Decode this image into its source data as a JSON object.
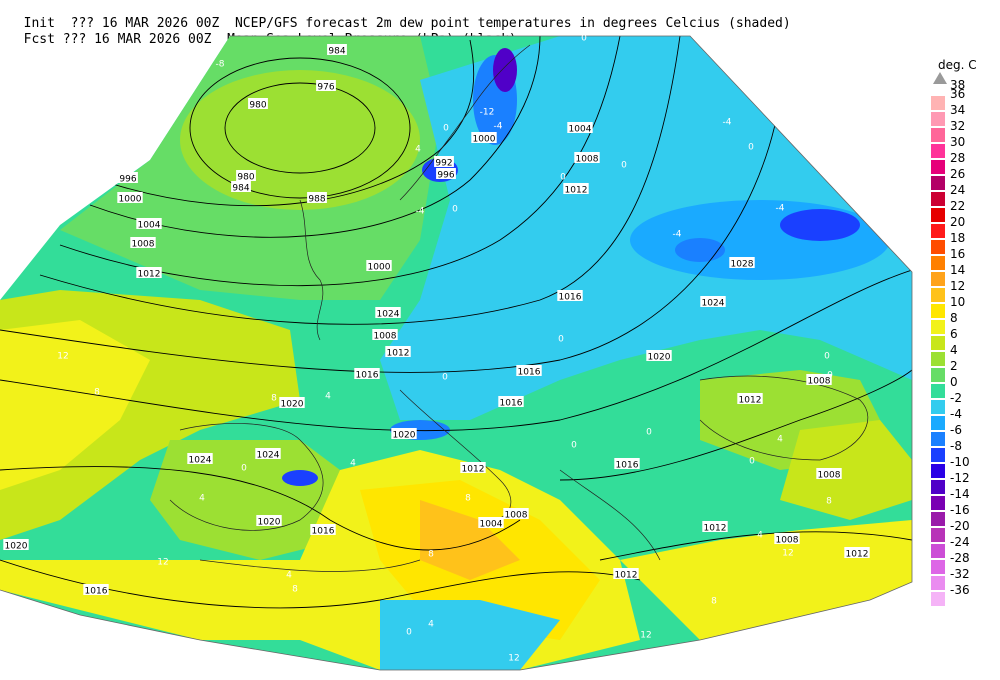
{
  "header": {
    "line1_left": "Init  ??? 16 MAR 2026 00Z",
    "line1_right": "NCEP/GFS forecast 2m dew point temperatures in degrees Celcius (shaded)",
    "line2_left": "Fcst ??? 16 MAR 2026 00Z",
    "line2_right": "Mean Sea-Level Pressure (hPa) (black)."
  },
  "legend": {
    "title": "deg. C",
    "top_value": "38",
    "entries": [
      {
        "label": "36",
        "color": "#ffb3b3"
      },
      {
        "label": "34",
        "color": "#ff99b3"
      },
      {
        "label": "32",
        "color": "#ff6699"
      },
      {
        "label": "30",
        "color": "#ff3399"
      },
      {
        "label": "28",
        "color": "#e6007a"
      },
      {
        "label": "26",
        "color": "#b30066"
      },
      {
        "label": "24",
        "color": "#cc0033"
      },
      {
        "label": "22",
        "color": "#e60000"
      },
      {
        "label": "20",
        "color": "#ff1a1a"
      },
      {
        "label": "18",
        "color": "#ff4d00"
      },
      {
        "label": "16",
        "color": "#ff8000"
      },
      {
        "label": "14",
        "color": "#ffa31a"
      },
      {
        "label": "12",
        "color": "#ffc21a"
      },
      {
        "label": "10",
        "color": "#ffe600"
      },
      {
        "label": "8",
        "color": "#f2f21a"
      },
      {
        "label": "6",
        "color": "#c8e61a"
      },
      {
        "label": "4",
        "color": "#9ce033"
      },
      {
        "label": "2",
        "color": "#66dd66"
      },
      {
        "label": "0",
        "color": "#33dd99"
      },
      {
        "label": "-2",
        "color": "#33ccee"
      },
      {
        "label": "-4",
        "color": "#1aaaff"
      },
      {
        "label": "-6",
        "color": "#1a80ff"
      },
      {
        "label": "-8",
        "color": "#1a40ff"
      },
      {
        "label": "-10",
        "color": "#2a00e6"
      },
      {
        "label": "-12",
        "color": "#5000c8"
      },
      {
        "label": "-14",
        "color": "#7a00b3"
      },
      {
        "label": "-16",
        "color": "#9a1aaa"
      },
      {
        "label": "-20",
        "color": "#b833b8"
      },
      {
        "label": "-24",
        "color": "#cc4dd6"
      },
      {
        "label": "-28",
        "color": "#dd66e6"
      },
      {
        "label": "-32",
        "color": "#ea8cf0"
      },
      {
        "label": "-36",
        "color": "#f5b3f7"
      }
    ]
  },
  "map": {
    "isobars": [
      {
        "label": "984",
        "pos": [
          337,
          50
        ]
      },
      {
        "label": "976",
        "pos": [
          326,
          86
        ]
      },
      {
        "label": "980",
        "pos": [
          258,
          104
        ]
      },
      {
        "label": "980",
        "pos": [
          246,
          176
        ]
      },
      {
        "label": "984",
        "pos": [
          241,
          187
        ]
      },
      {
        "label": "996",
        "pos": [
          128,
          178
        ]
      },
      {
        "label": "1000",
        "pos": [
          130,
          198
        ]
      },
      {
        "label": "1004",
        "pos": [
          149,
          224
        ]
      },
      {
        "label": "1008",
        "pos": [
          143,
          243
        ]
      },
      {
        "label": "1012",
        "pos": [
          149,
          273
        ]
      },
      {
        "label": "988",
        "pos": [
          317,
          198
        ]
      },
      {
        "label": "1000",
        "pos": [
          484,
          138
        ]
      },
      {
        "label": "992",
        "pos": [
          444,
          162
        ]
      },
      {
        "label": "996",
        "pos": [
          446,
          174
        ]
      },
      {
        "label": "1004",
        "pos": [
          580,
          128
        ]
      },
      {
        "label": "1008",
        "pos": [
          587,
          158
        ]
      },
      {
        "label": "1012",
        "pos": [
          576,
          189
        ]
      },
      {
        "label": "1000",
        "pos": [
          379,
          266
        ]
      },
      {
        "label": "1024",
        "pos": [
          388,
          313
        ]
      },
      {
        "label": "1008",
        "pos": [
          385,
          335
        ]
      },
      {
        "label": "1012",
        "pos": [
          398,
          352
        ]
      },
      {
        "label": "1016",
        "pos": [
          367,
          374
        ]
      },
      {
        "label": "1016",
        "pos": [
          570,
          296
        ]
      },
      {
        "label": "1028",
        "pos": [
          742,
          263
        ]
      },
      {
        "label": "1024",
        "pos": [
          713,
          302
        ]
      },
      {
        "label": "1020",
        "pos": [
          659,
          356
        ]
      },
      {
        "label": "1016",
        "pos": [
          529,
          371
        ]
      },
      {
        "label": "1016",
        "pos": [
          511,
          402
        ]
      },
      {
        "label": "1020",
        "pos": [
          292,
          403
        ]
      },
      {
        "label": "1020",
        "pos": [
          404,
          434
        ]
      },
      {
        "label": "1024",
        "pos": [
          200,
          459
        ]
      },
      {
        "label": "1024",
        "pos": [
          268,
          454
        ]
      },
      {
        "label": "1012",
        "pos": [
          473,
          468
        ]
      },
      {
        "label": "1016",
        "pos": [
          627,
          464
        ]
      },
      {
        "label": "1008",
        "pos": [
          819,
          380
        ]
      },
      {
        "label": "1012",
        "pos": [
          750,
          399
        ]
      },
      {
        "label": "1008",
        "pos": [
          829,
          474
        ]
      },
      {
        "label": "1020",
        "pos": [
          269,
          521
        ]
      },
      {
        "label": "1016",
        "pos": [
          323,
          530
        ]
      },
      {
        "label": "1008",
        "pos": [
          516,
          514
        ]
      },
      {
        "label": "1004",
        "pos": [
          491,
          523
        ]
      },
      {
        "label": "1012",
        "pos": [
          715,
          527
        ]
      },
      {
        "label": "1008",
        "pos": [
          787,
          539
        ]
      },
      {
        "label": "1012",
        "pos": [
          857,
          553
        ]
      },
      {
        "label": "1012",
        "pos": [
          626,
          574
        ]
      },
      {
        "label": "1020",
        "pos": [
          16,
          545
        ]
      },
      {
        "label": "1016",
        "pos": [
          96,
          590
        ]
      }
    ],
    "temp_labels": [
      {
        "label": "-8",
        "pos": [
          220,
          63
        ]
      },
      {
        "label": "0",
        "pos": [
          584,
          37
        ]
      },
      {
        "label": "-4",
        "pos": [
          498,
          125
        ]
      },
      {
        "label": "-12",
        "pos": [
          487,
          111
        ]
      },
      {
        "label": "-4",
        "pos": [
          727,
          121
        ]
      },
      {
        "label": "0",
        "pos": [
          751,
          146
        ]
      },
      {
        "label": "-4",
        "pos": [
          780,
          207
        ]
      },
      {
        "label": "-4",
        "pos": [
          677,
          233
        ]
      },
      {
        "label": "0",
        "pos": [
          624,
          164
        ]
      },
      {
        "label": "0",
        "pos": [
          563,
          176
        ]
      },
      {
        "label": "0",
        "pos": [
          446,
          127
        ]
      },
      {
        "label": "4",
        "pos": [
          418,
          148
        ]
      },
      {
        "label": "-4",
        "pos": [
          420,
          210
        ]
      },
      {
        "label": "0",
        "pos": [
          455,
          208
        ]
      },
      {
        "label": "0",
        "pos": [
          445,
          376
        ]
      },
      {
        "label": "0",
        "pos": [
          561,
          338
        ]
      },
      {
        "label": "0",
        "pos": [
          649,
          431
        ]
      },
      {
        "label": "0",
        "pos": [
          574,
          444
        ]
      },
      {
        "label": "0",
        "pos": [
          752,
          460
        ]
      },
      {
        "label": "4",
        "pos": [
          780,
          438
        ]
      },
      {
        "label": "0",
        "pos": [
          830,
          374
        ]
      },
      {
        "label": "0",
        "pos": [
          827,
          355
        ]
      },
      {
        "label": "12",
        "pos": [
          63,
          355
        ]
      },
      {
        "label": "8",
        "pos": [
          97,
          391
        ]
      },
      {
        "label": "8",
        "pos": [
          274,
          397
        ]
      },
      {
        "label": "4",
        "pos": [
          328,
          395
        ]
      },
      {
        "label": "4",
        "pos": [
          353,
          462
        ]
      },
      {
        "label": "0",
        "pos": [
          244,
          467
        ]
      },
      {
        "label": "4",
        "pos": [
          202,
          497
        ]
      },
      {
        "label": "8",
        "pos": [
          468,
          497
        ]
      },
      {
        "label": "8",
        "pos": [
          431,
          553
        ]
      },
      {
        "label": "12",
        "pos": [
          163,
          561
        ]
      },
      {
        "label": "4",
        "pos": [
          289,
          574
        ]
      },
      {
        "label": "8",
        "pos": [
          295,
          588
        ]
      },
      {
        "label": "0",
        "pos": [
          409,
          631
        ]
      },
      {
        "label": "4",
        "pos": [
          431,
          623
        ]
      },
      {
        "label": "8",
        "pos": [
          714,
          600
        ]
      },
      {
        "label": "12",
        "pos": [
          788,
          552
        ]
      },
      {
        "label": "8",
        "pos": [
          829,
          500
        ]
      },
      {
        "label": "12",
        "pos": [
          646,
          634
        ]
      },
      {
        "label": "12",
        "pos": [
          514,
          657
        ]
      },
      {
        "label": "4",
        "pos": [
          760,
          534
        ]
      }
    ]
  }
}
